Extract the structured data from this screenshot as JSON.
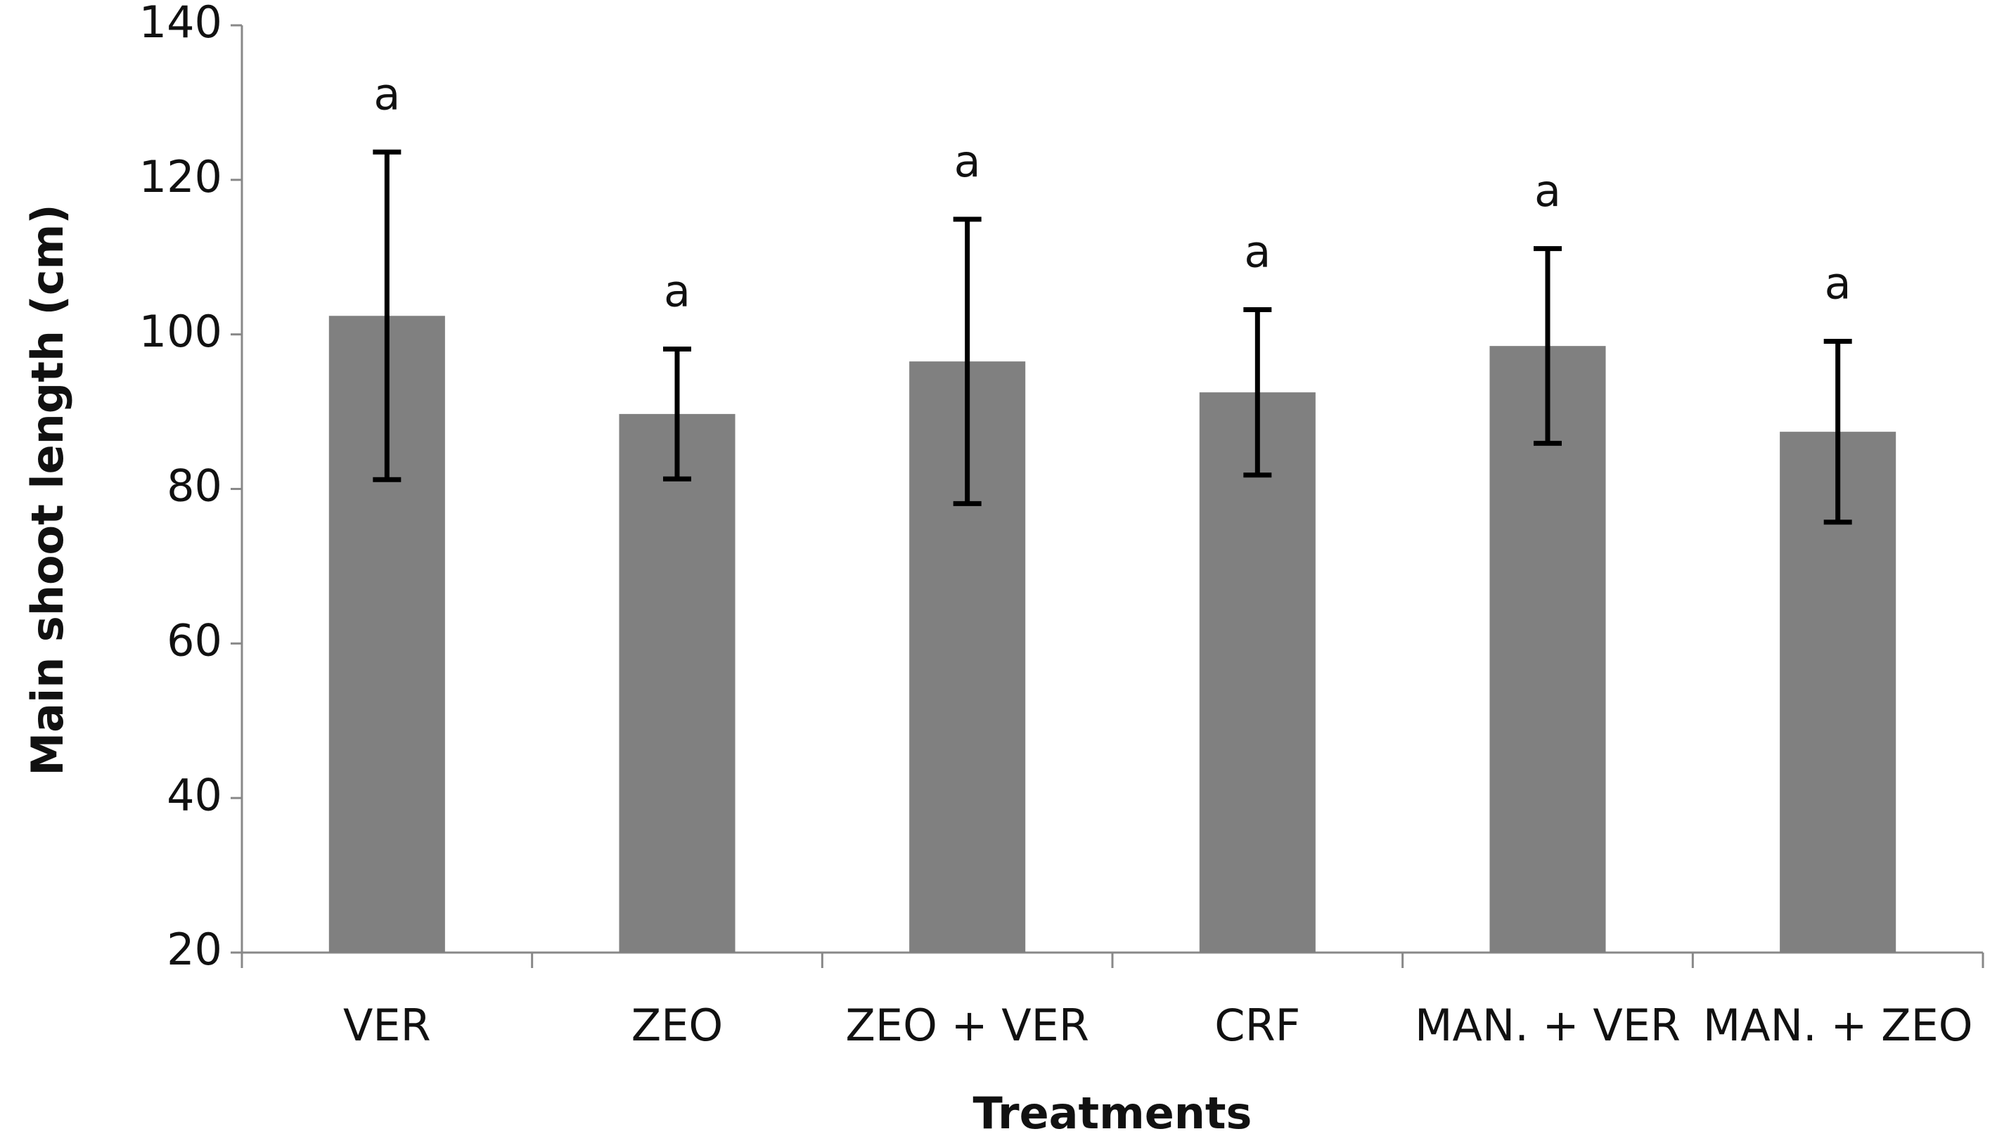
{
  "chart_data": {
    "type": "bar",
    "x_label": "Treatments",
    "y_label": "Main shoot length (cm)",
    "categories": [
      "VER",
      "ZEO",
      "ZEO + VER",
      "CRF",
      "MAN. + VER",
      "MAN. + ZEO"
    ],
    "values": [
      102.4,
      89.7,
      96.5,
      92.5,
      98.5,
      87.4
    ],
    "errors": [
      21.2,
      8.4,
      18.4,
      10.7,
      12.6,
      11.7
    ],
    "letters": [
      "a",
      "a",
      "a",
      "a",
      "a",
      "a"
    ],
    "color": "#808080",
    "ylim": [
      20,
      140
    ],
    "yticks": [
      20,
      40,
      60,
      80,
      100,
      120,
      140
    ],
    "grid": false
  }
}
